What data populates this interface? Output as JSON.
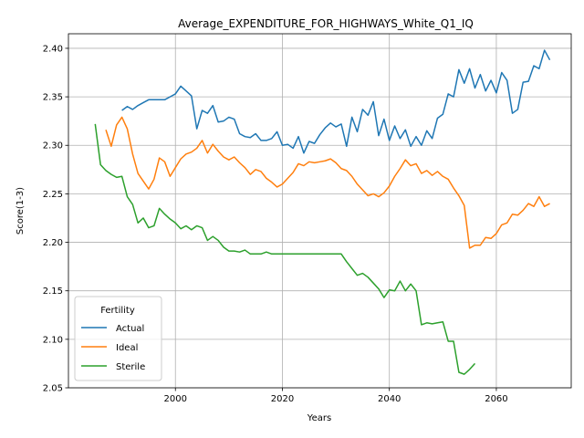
{
  "chart_data": {
    "type": "line",
    "title": "Average_EXPENDITURE_FOR_HIGHWAYS_White_Q1_IQ",
    "xlabel": "Years",
    "ylabel": "Score(1-3)",
    "xlim": [
      1980,
      2074
    ],
    "ylim": [
      2.05,
      2.415
    ],
    "xticks": [
      2000,
      2020,
      2040,
      2060
    ],
    "yticks": [
      2.05,
      2.1,
      2.15,
      2.2,
      2.25,
      2.3,
      2.35,
      2.4
    ],
    "ytick_labels": [
      "2.05",
      "2.10",
      "2.15",
      "2.20",
      "2.25",
      "2.30",
      "2.35",
      "2.40"
    ],
    "grid": true,
    "legend": {
      "title": "Fertility",
      "position": "lower-left"
    },
    "colors": {
      "Actual": "#1f77b4",
      "Ideal": "#ff7f0e",
      "Sterile": "#2ca02c"
    },
    "series": [
      {
        "name": "Actual",
        "x": [
          1990,
          1991,
          1992,
          1993,
          1994,
          1995,
          1996,
          1997,
          1998,
          1999,
          2000,
          2001,
          2002,
          2003,
          2004,
          2005,
          2006,
          2007,
          2008,
          2009,
          2010,
          2011,
          2012,
          2013,
          2014,
          2015,
          2016,
          2017,
          2018,
          2019,
          2020,
          2021,
          2022,
          2023,
          2024,
          2025,
          2026,
          2027,
          2028,
          2029,
          2030,
          2031,
          2032,
          2033,
          2034,
          2035,
          2036,
          2037,
          2038,
          2039,
          2040,
          2041,
          2042,
          2043,
          2044,
          2045,
          2046,
          2047,
          2048,
          2049,
          2050,
          2051,
          2052,
          2053,
          2054,
          2055,
          2056,
          2057,
          2058,
          2059,
          2060,
          2061,
          2062,
          2063,
          2064,
          2065,
          2066,
          2067,
          2068,
          2069,
          2070
        ],
        "values": [
          2.336,
          2.34,
          2.337,
          2.341,
          2.344,
          2.347,
          2.347,
          2.347,
          2.347,
          2.35,
          2.353,
          2.361,
          2.356,
          2.351,
          2.317,
          2.336,
          2.333,
          2.341,
          2.324,
          2.325,
          2.329,
          2.327,
          2.312,
          2.309,
          2.308,
          2.312,
          2.305,
          2.305,
          2.307,
          2.314,
          2.3,
          2.301,
          2.297,
          2.309,
          2.292,
          2.304,
          2.302,
          2.311,
          2.318,
          2.323,
          2.319,
          2.322,
          2.299,
          2.329,
          2.314,
          2.337,
          2.331,
          2.345,
          2.31,
          2.327,
          2.305,
          2.32,
          2.307,
          2.316,
          2.299,
          2.309,
          2.3,
          2.315,
          2.307,
          2.328,
          2.332,
          2.353,
          2.35,
          2.378,
          2.364,
          2.379,
          2.359,
          2.373,
          2.356,
          2.367,
          2.354,
          2.375,
          2.367,
          2.333,
          2.337,
          2.365,
          2.366,
          2.382,
          2.379,
          2.398,
          2.388
        ]
      },
      {
        "name": "Ideal",
        "x": [
          1987,
          1988,
          1989,
          1990,
          1991,
          1992,
          1993,
          1994,
          1995,
          1996,
          1997,
          1998,
          1999,
          2000,
          2001,
          2002,
          2003,
          2004,
          2005,
          2006,
          2007,
          2008,
          2009,
          2010,
          2011,
          2012,
          2013,
          2014,
          2015,
          2016,
          2017,
          2018,
          2019,
          2020,
          2021,
          2022,
          2023,
          2024,
          2025,
          2026,
          2027,
          2028,
          2029,
          2030,
          2031,
          2032,
          2033,
          2034,
          2035,
          2036,
          2037,
          2038,
          2039,
          2040,
          2041,
          2042,
          2043,
          2044,
          2045,
          2046,
          2047,
          2048,
          2049,
          2050,
          2051,
          2052,
          2053,
          2054,
          2055,
          2056,
          2057,
          2058,
          2059,
          2060,
          2061,
          2062,
          2063,
          2064,
          2065,
          2066,
          2067,
          2068,
          2069,
          2070
        ],
        "values": [
          2.316,
          2.299,
          2.321,
          2.329,
          2.317,
          2.291,
          2.271,
          2.263,
          2.255,
          2.265,
          2.287,
          2.283,
          2.268,
          2.277,
          2.286,
          2.291,
          2.293,
          2.297,
          2.305,
          2.292,
          2.301,
          2.294,
          2.288,
          2.285,
          2.288,
          2.282,
          2.277,
          2.27,
          2.275,
          2.273,
          2.266,
          2.262,
          2.257,
          2.26,
          2.266,
          2.272,
          2.281,
          2.279,
          2.283,
          2.282,
          2.283,
          2.284,
          2.286,
          2.282,
          2.276,
          2.274,
          2.268,
          2.26,
          2.254,
          2.248,
          2.25,
          2.247,
          2.251,
          2.258,
          2.268,
          2.276,
          2.285,
          2.279,
          2.281,
          2.271,
          2.274,
          2.269,
          2.273,
          2.268,
          2.265,
          2.256,
          2.248,
          2.238,
          2.194,
          2.197,
          2.197,
          2.205,
          2.204,
          2.209,
          2.218,
          2.22,
          2.229,
          2.228,
          2.233,
          2.24,
          2.237,
          2.247,
          2.237,
          2.24
        ]
      },
      {
        "name": "Sterile",
        "x": [
          1985,
          1986,
          1987,
          1988,
          1989,
          1990,
          1991,
          1992,
          1993,
          1994,
          1995,
          1996,
          1997,
          1998,
          1999,
          2000,
          2001,
          2002,
          2003,
          2004,
          2005,
          2006,
          2007,
          2008,
          2009,
          2010,
          2011,
          2012,
          2013,
          2014,
          2015,
          2016,
          2017,
          2018,
          2019,
          2020,
          2021,
          2022,
          2023,
          2024,
          2025,
          2026,
          2027,
          2028,
          2029,
          2030,
          2031,
          2032,
          2033,
          2034,
          2035,
          2036,
          2037,
          2038,
          2039,
          2040,
          2041,
          2042,
          2043,
          2044,
          2045,
          2046,
          2047,
          2048,
          2049,
          2050,
          2051,
          2052,
          2053,
          2054,
          2055,
          2056
        ],
        "values": [
          2.322,
          2.28,
          2.274,
          2.27,
          2.267,
          2.268,
          2.247,
          2.239,
          2.22,
          2.225,
          2.215,
          2.217,
          2.235,
          2.229,
          2.224,
          2.22,
          2.214,
          2.217,
          2.213,
          2.217,
          2.215,
          2.202,
          2.206,
          2.202,
          2.195,
          2.191,
          2.191,
          2.19,
          2.192,
          2.188,
          2.188,
          2.188,
          2.19,
          2.188,
          2.188,
          2.188,
          2.188,
          2.188,
          2.188,
          2.188,
          2.188,
          2.188,
          2.188,
          2.188,
          2.188,
          2.188,
          2.188,
          2.18,
          2.173,
          2.166,
          2.168,
          2.164,
          2.158,
          2.152,
          2.143,
          2.151,
          2.15,
          2.16,
          2.15,
          2.157,
          2.15,
          2.115,
          2.117,
          2.116,
          2.117,
          2.118,
          2.098,
          2.098,
          2.066,
          2.064,
          2.069,
          2.075
        ]
      }
    ]
  }
}
